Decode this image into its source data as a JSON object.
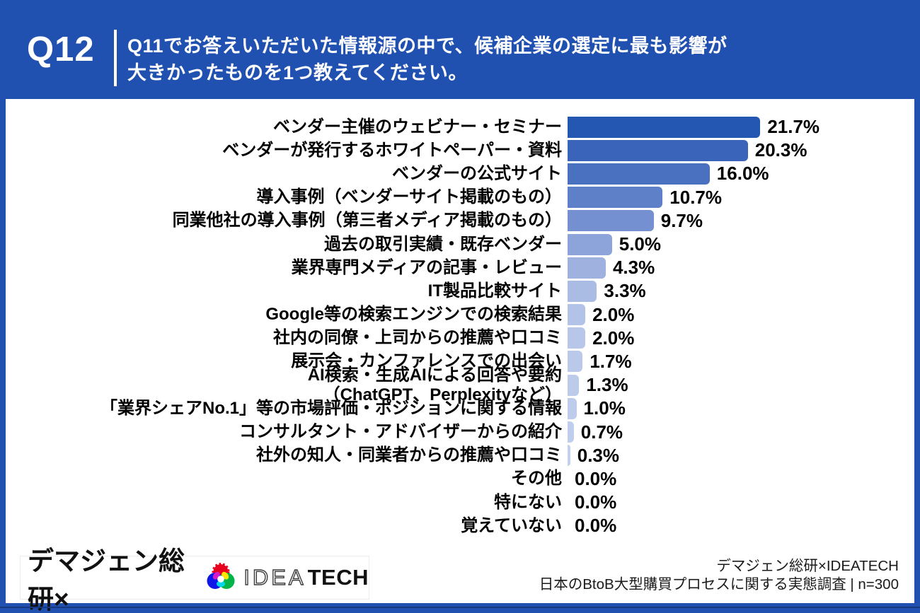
{
  "header": {
    "question_number": "Q12",
    "question": "Q11でお答えいただいた情報源の中で、候補企業の選定に最も影響が\n大きかったものを1つ教えてください。"
  },
  "chart_data": {
    "type": "bar",
    "orientation": "horizontal",
    "unit": "%",
    "xlim": [
      0,
      25
    ],
    "grid": false,
    "legend": false,
    "categories": [
      "ベンダー主催のウェビナー・セミナー",
      "ベンダーが発行するホワイトペーパー・資料",
      "ベンダーの公式サイト",
      "導入事例（ベンダーサイト掲載のもの）",
      "同業他社の導入事例（第三者メディア掲載のもの）",
      "過去の取引実績・既存ベンダー",
      "業界専門メディアの記事・レビュー",
      "IT製品比較サイト",
      "Google等の検索エンジンでの検索結果",
      "社内の同僚・上司からの推薦や口コミ",
      "展示会・カンファレンスでの出会い",
      "AI検索・生成AIによる回答や要約\n（ChatGPT、Perplexityなど）",
      "「業界シェアNo.1」等の市場評価・ポジションに関する情報",
      "コンサルタント・アドバイザーからの紹介",
      "社外の知人・同業者からの推薦や口コミ",
      "その他",
      "特にない",
      "覚えていない"
    ],
    "values": [
      21.7,
      20.3,
      16.0,
      10.7,
      9.7,
      5.0,
      4.3,
      3.3,
      2.0,
      2.0,
      1.7,
      1.3,
      1.0,
      0.7,
      0.3,
      0.0,
      0.0,
      0.0
    ],
    "value_labels": [
      "21.7%",
      "20.3%",
      "16.0%",
      "10.7%",
      "9.7%",
      "5.0%",
      "4.3%",
      "3.3%",
      "2.0%",
      "2.0%",
      "1.7%",
      "1.3%",
      "1.0%",
      "0.7%",
      "0.3%",
      "0.0%",
      "0.0%",
      "0.0%"
    ],
    "bar_colors": [
      "#2457b2",
      "#3a64ba",
      "#4a71c0",
      "#5e80c9",
      "#7490d1",
      "#8ca4d9",
      "#9eb1df",
      "#abbce4",
      "#b3c3e7",
      "#b7c6e9",
      "#bac9ea",
      "#bccbea",
      "#bdcceb",
      "#bfceec",
      "#c1d0ed",
      "#c2d1ed",
      "#c2d1ed",
      "#c2d1ed"
    ]
  },
  "footer": {
    "brand_left": "デマジェン総研×",
    "logo_outline": "IDEA",
    "logo_solid": "TECH",
    "source_line1": "デマジェン総研×IDEATECH",
    "source_line2": "日本のBtoB大型購買プロセスに関する実態調査 | n=300"
  },
  "colors": {
    "background_blue": "#2151b0",
    "bottom_accent": "#17377f",
    "card_white": "#ffffff",
    "header_text": "#ffffff",
    "label_text": "#000000"
  }
}
